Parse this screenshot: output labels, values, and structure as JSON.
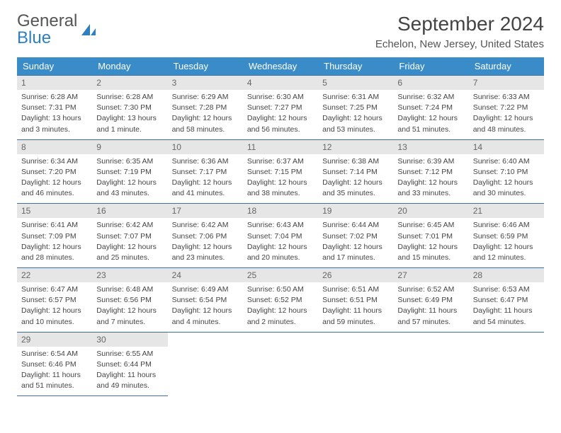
{
  "brand": {
    "part1": "General",
    "part2": "Blue"
  },
  "title": "September 2024",
  "location": "Echelon, New Jersey, United States",
  "colors": {
    "header_bg": "#3a8cc9",
    "header_text": "#ffffff",
    "daynum_bg": "#e6e6e6",
    "daynum_text": "#666666",
    "border": "#3a6fa0",
    "logo_blue": "#2e7fc1",
    "body_text": "#444444",
    "page_bg": "#ffffff"
  },
  "typography": {
    "title_fontsize": 28,
    "location_fontsize": 15,
    "dayheader_fontsize": 13,
    "daynum_fontsize": 12,
    "body_fontsize": 10.5
  },
  "day_headers": [
    "Sunday",
    "Monday",
    "Tuesday",
    "Wednesday",
    "Thursday",
    "Friday",
    "Saturday"
  ],
  "weeks": [
    [
      {
        "n": "1",
        "sunrise": "Sunrise: 6:28 AM",
        "sunset": "Sunset: 7:31 PM",
        "dl1": "Daylight: 13 hours",
        "dl2": "and 3 minutes."
      },
      {
        "n": "2",
        "sunrise": "Sunrise: 6:28 AM",
        "sunset": "Sunset: 7:30 PM",
        "dl1": "Daylight: 13 hours",
        "dl2": "and 1 minute."
      },
      {
        "n": "3",
        "sunrise": "Sunrise: 6:29 AM",
        "sunset": "Sunset: 7:28 PM",
        "dl1": "Daylight: 12 hours",
        "dl2": "and 58 minutes."
      },
      {
        "n": "4",
        "sunrise": "Sunrise: 6:30 AM",
        "sunset": "Sunset: 7:27 PM",
        "dl1": "Daylight: 12 hours",
        "dl2": "and 56 minutes."
      },
      {
        "n": "5",
        "sunrise": "Sunrise: 6:31 AM",
        "sunset": "Sunset: 7:25 PM",
        "dl1": "Daylight: 12 hours",
        "dl2": "and 53 minutes."
      },
      {
        "n": "6",
        "sunrise": "Sunrise: 6:32 AM",
        "sunset": "Sunset: 7:24 PM",
        "dl1": "Daylight: 12 hours",
        "dl2": "and 51 minutes."
      },
      {
        "n": "7",
        "sunrise": "Sunrise: 6:33 AM",
        "sunset": "Sunset: 7:22 PM",
        "dl1": "Daylight: 12 hours",
        "dl2": "and 48 minutes."
      }
    ],
    [
      {
        "n": "8",
        "sunrise": "Sunrise: 6:34 AM",
        "sunset": "Sunset: 7:20 PM",
        "dl1": "Daylight: 12 hours",
        "dl2": "and 46 minutes."
      },
      {
        "n": "9",
        "sunrise": "Sunrise: 6:35 AM",
        "sunset": "Sunset: 7:19 PM",
        "dl1": "Daylight: 12 hours",
        "dl2": "and 43 minutes."
      },
      {
        "n": "10",
        "sunrise": "Sunrise: 6:36 AM",
        "sunset": "Sunset: 7:17 PM",
        "dl1": "Daylight: 12 hours",
        "dl2": "and 41 minutes."
      },
      {
        "n": "11",
        "sunrise": "Sunrise: 6:37 AM",
        "sunset": "Sunset: 7:15 PM",
        "dl1": "Daylight: 12 hours",
        "dl2": "and 38 minutes."
      },
      {
        "n": "12",
        "sunrise": "Sunrise: 6:38 AM",
        "sunset": "Sunset: 7:14 PM",
        "dl1": "Daylight: 12 hours",
        "dl2": "and 35 minutes."
      },
      {
        "n": "13",
        "sunrise": "Sunrise: 6:39 AM",
        "sunset": "Sunset: 7:12 PM",
        "dl1": "Daylight: 12 hours",
        "dl2": "and 33 minutes."
      },
      {
        "n": "14",
        "sunrise": "Sunrise: 6:40 AM",
        "sunset": "Sunset: 7:10 PM",
        "dl1": "Daylight: 12 hours",
        "dl2": "and 30 minutes."
      }
    ],
    [
      {
        "n": "15",
        "sunrise": "Sunrise: 6:41 AM",
        "sunset": "Sunset: 7:09 PM",
        "dl1": "Daylight: 12 hours",
        "dl2": "and 28 minutes."
      },
      {
        "n": "16",
        "sunrise": "Sunrise: 6:42 AM",
        "sunset": "Sunset: 7:07 PM",
        "dl1": "Daylight: 12 hours",
        "dl2": "and 25 minutes."
      },
      {
        "n": "17",
        "sunrise": "Sunrise: 6:42 AM",
        "sunset": "Sunset: 7:06 PM",
        "dl1": "Daylight: 12 hours",
        "dl2": "and 23 minutes."
      },
      {
        "n": "18",
        "sunrise": "Sunrise: 6:43 AM",
        "sunset": "Sunset: 7:04 PM",
        "dl1": "Daylight: 12 hours",
        "dl2": "and 20 minutes."
      },
      {
        "n": "19",
        "sunrise": "Sunrise: 6:44 AM",
        "sunset": "Sunset: 7:02 PM",
        "dl1": "Daylight: 12 hours",
        "dl2": "and 17 minutes."
      },
      {
        "n": "20",
        "sunrise": "Sunrise: 6:45 AM",
        "sunset": "Sunset: 7:01 PM",
        "dl1": "Daylight: 12 hours",
        "dl2": "and 15 minutes."
      },
      {
        "n": "21",
        "sunrise": "Sunrise: 6:46 AM",
        "sunset": "Sunset: 6:59 PM",
        "dl1": "Daylight: 12 hours",
        "dl2": "and 12 minutes."
      }
    ],
    [
      {
        "n": "22",
        "sunrise": "Sunrise: 6:47 AM",
        "sunset": "Sunset: 6:57 PM",
        "dl1": "Daylight: 12 hours",
        "dl2": "and 10 minutes."
      },
      {
        "n": "23",
        "sunrise": "Sunrise: 6:48 AM",
        "sunset": "Sunset: 6:56 PM",
        "dl1": "Daylight: 12 hours",
        "dl2": "and 7 minutes."
      },
      {
        "n": "24",
        "sunrise": "Sunrise: 6:49 AM",
        "sunset": "Sunset: 6:54 PM",
        "dl1": "Daylight: 12 hours",
        "dl2": "and 4 minutes."
      },
      {
        "n": "25",
        "sunrise": "Sunrise: 6:50 AM",
        "sunset": "Sunset: 6:52 PM",
        "dl1": "Daylight: 12 hours",
        "dl2": "and 2 minutes."
      },
      {
        "n": "26",
        "sunrise": "Sunrise: 6:51 AM",
        "sunset": "Sunset: 6:51 PM",
        "dl1": "Daylight: 11 hours",
        "dl2": "and 59 minutes."
      },
      {
        "n": "27",
        "sunrise": "Sunrise: 6:52 AM",
        "sunset": "Sunset: 6:49 PM",
        "dl1": "Daylight: 11 hours",
        "dl2": "and 57 minutes."
      },
      {
        "n": "28",
        "sunrise": "Sunrise: 6:53 AM",
        "sunset": "Sunset: 6:47 PM",
        "dl1": "Daylight: 11 hours",
        "dl2": "and 54 minutes."
      }
    ],
    [
      {
        "n": "29",
        "sunrise": "Sunrise: 6:54 AM",
        "sunset": "Sunset: 6:46 PM",
        "dl1": "Daylight: 11 hours",
        "dl2": "and 51 minutes."
      },
      {
        "n": "30",
        "sunrise": "Sunrise: 6:55 AM",
        "sunset": "Sunset: 6:44 PM",
        "dl1": "Daylight: 11 hours",
        "dl2": "and 49 minutes."
      },
      null,
      null,
      null,
      null,
      null
    ]
  ]
}
